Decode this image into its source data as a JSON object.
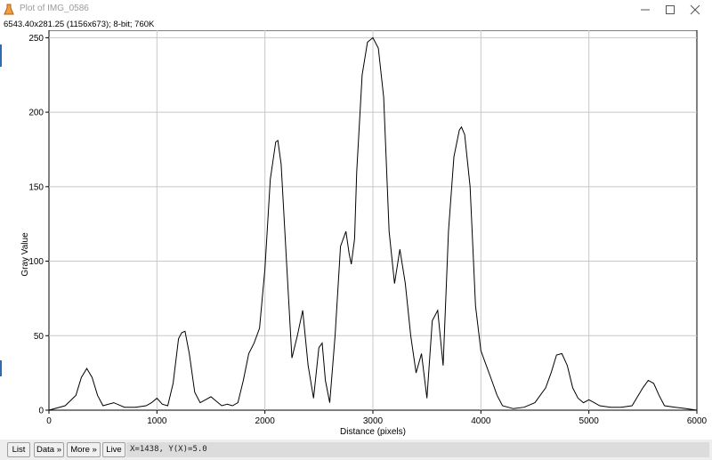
{
  "window": {
    "title": "Plot of IMG_0586",
    "icon": "imagej-flask-icon",
    "controls": [
      "minimize-icon",
      "maximize-icon",
      "close-icon"
    ]
  },
  "info_line": "6543.40x281.25  (1156x673); 8-bit; 760K",
  "buttons": {
    "list": "List",
    "data": "Data »",
    "more": "More »",
    "live": "Live"
  },
  "status": "X=1438, Y(X)=5.0",
  "chart_data": {
    "type": "line",
    "xlabel": "Distance (pixels)",
    "ylabel": "Gray Value",
    "xlim": [
      0,
      6000
    ],
    "ylim": [
      0,
      255
    ],
    "xticks": [
      0,
      1000,
      2000,
      3000,
      4000,
      5000,
      6000
    ],
    "yticks": [
      0,
      50,
      100,
      150,
      200,
      250
    ],
    "grid": true,
    "series": [
      {
        "x": [
          0,
          150,
          250,
          300,
          350,
          400,
          450,
          500,
          600,
          700,
          800,
          900,
          950,
          1000,
          1050,
          1100,
          1150,
          1200,
          1230,
          1260,
          1300,
          1350,
          1400,
          1450,
          1500,
          1550,
          1600,
          1650,
          1700,
          1750,
          1800,
          1850,
          1900,
          1950,
          2000,
          2050,
          2100,
          2120,
          2150,
          2200,
          2250,
          2300,
          2350,
          2400,
          2450,
          2500,
          2530,
          2560,
          2600,
          2650,
          2700,
          2750,
          2780,
          2800,
          2830,
          2850,
          2900,
          2950,
          3000,
          3050,
          3100,
          3150,
          3200,
          3250,
          3300,
          3350,
          3400,
          3450,
          3500,
          3550,
          3600,
          3650,
          3700,
          3750,
          3800,
          3820,
          3850,
          3900,
          3950,
          4000,
          4050,
          4100,
          4150,
          4200,
          4300,
          4400,
          4500,
          4600,
          4650,
          4700,
          4750,
          4800,
          4850,
          4900,
          4950,
          5000,
          5050,
          5100,
          5200,
          5300,
          5400,
          5500,
          5550,
          5600,
          5650,
          5700,
          5800,
          5900,
          6000
        ],
        "y": [
          0,
          3,
          10,
          22,
          28,
          22,
          10,
          3,
          5,
          2,
          2,
          3,
          5,
          8,
          4,
          3,
          18,
          48,
          52,
          53,
          38,
          12,
          5,
          7,
          9,
          6,
          3,
          4,
          3,
          5,
          20,
          38,
          45,
          55,
          95,
          155,
          180,
          181,
          165,
          100,
          35,
          50,
          67,
          30,
          8,
          42,
          45,
          20,
          5,
          50,
          110,
          120,
          105,
          98,
          115,
          160,
          225,
          247,
          250,
          243,
          210,
          120,
          85,
          108,
          85,
          50,
          25,
          38,
          8,
          60,
          67,
          30,
          120,
          170,
          188,
          190,
          185,
          150,
          70,
          40,
          30,
          20,
          10,
          3,
          1,
          2,
          5,
          15,
          25,
          37,
          38,
          30,
          15,
          8,
          5,
          7,
          5,
          3,
          2,
          2,
          3,
          15,
          20,
          18,
          10,
          3,
          2,
          1,
          0
        ]
      }
    ]
  }
}
